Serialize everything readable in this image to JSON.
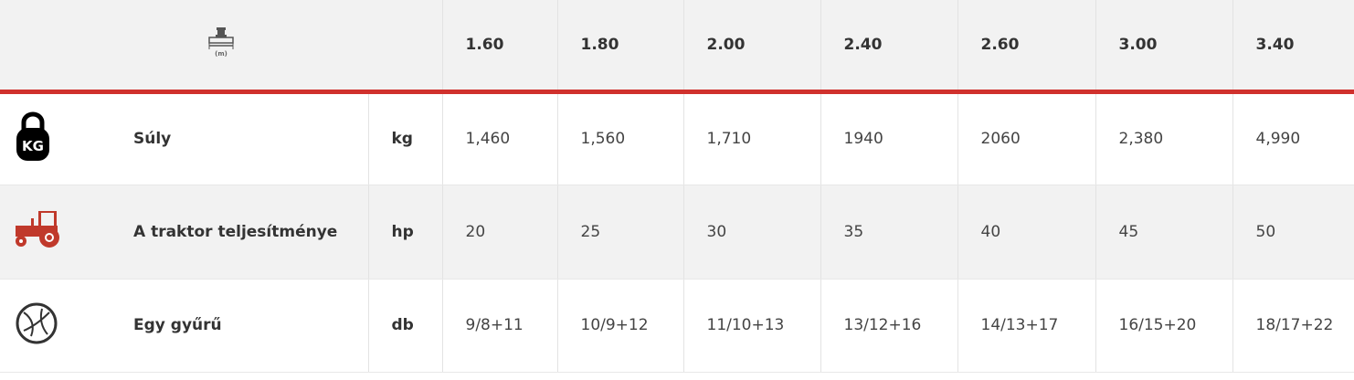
{
  "header": {
    "width_unit": "(m)",
    "columns": [
      "1.60",
      "1.80",
      "2.00",
      "2.40",
      "2.60",
      "3.00",
      "3.40"
    ]
  },
  "rows": [
    {
      "icon": "kettlebell-kg-icon",
      "icon_text": "KG",
      "label": "Súly",
      "unit": "kg",
      "values": [
        "1,460",
        "1,560",
        "1,710",
        "1940",
        "2060",
        "2,380",
        "4,990"
      ]
    },
    {
      "icon": "tractor-icon",
      "label": "A traktor teljesítménye",
      "unit": "hp",
      "values": [
        "20",
        "25",
        "30",
        "35",
        "40",
        "45",
        "50"
      ]
    },
    {
      "icon": "disc-ring-icon",
      "label": "Egy gyűrű",
      "unit": "db",
      "values": [
        "9/8+11",
        "10/9+12",
        "11/10+13",
        "13/12+16",
        "14/13+17",
        "16/15+20",
        "18/17+22"
      ]
    }
  ],
  "colors": {
    "accent": "#d0312d",
    "tractor": "#c0392b"
  }
}
